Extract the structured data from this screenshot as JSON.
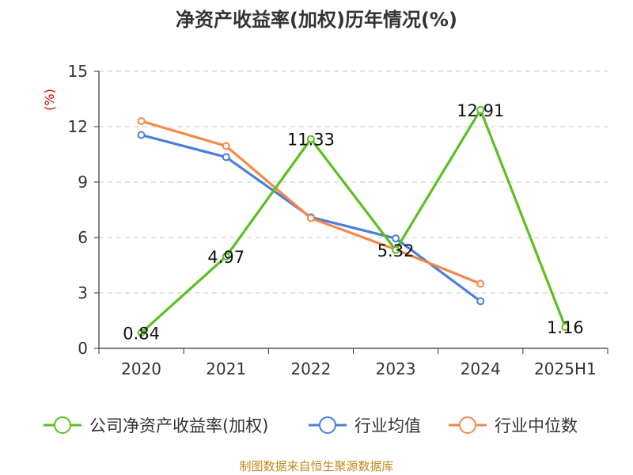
{
  "chart_data": {
    "type": "line",
    "title": "净资产收益率(加权)历年情况(%)",
    "unit_label": "(%)",
    "categories": [
      "2020",
      "2021",
      "2022",
      "2023",
      "2024",
      "2025H1"
    ],
    "ylim": [
      0,
      15
    ],
    "yticks": [
      0,
      3,
      6,
      9,
      12,
      15
    ],
    "grid": true,
    "legend_position": "bottom",
    "series": [
      {
        "name": "公司净资产收益率(加权)",
        "color": "#5dbf22",
        "values": [
          0.84,
          4.97,
          11.33,
          5.32,
          12.91,
          1.16
        ],
        "data_labels": [
          "0.84",
          "4.97",
          "11.33",
          "5.32",
          "12.91",
          "1.16"
        ]
      },
      {
        "name": "行业均值",
        "color": "#4a7ed8",
        "values": [
          11.55,
          10.35,
          7.1,
          5.95,
          2.55,
          null
        ]
      },
      {
        "name": "行业中位数",
        "color": "#f3894a",
        "values": [
          12.3,
          10.95,
          7.05,
          5.35,
          3.5,
          null
        ]
      }
    ]
  },
  "source_text": "制图数据来自恒生聚源数据库"
}
